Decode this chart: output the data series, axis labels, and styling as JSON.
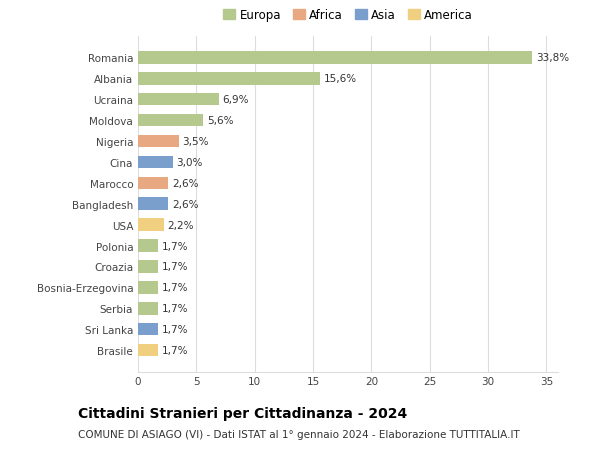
{
  "categories": [
    "Brasile",
    "Sri Lanka",
    "Serbia",
    "Bosnia-Erzegovina",
    "Croazia",
    "Polonia",
    "USA",
    "Bangladesh",
    "Marocco",
    "Cina",
    "Nigeria",
    "Moldova",
    "Ucraina",
    "Albania",
    "Romania"
  ],
  "values": [
    1.7,
    1.7,
    1.7,
    1.7,
    1.7,
    1.7,
    2.2,
    2.6,
    2.6,
    3.0,
    3.5,
    5.6,
    6.9,
    15.6,
    33.8
  ],
  "labels": [
    "1,7%",
    "1,7%",
    "1,7%",
    "1,7%",
    "1,7%",
    "1,7%",
    "2,2%",
    "2,6%",
    "2,6%",
    "3,0%",
    "3,5%",
    "5,6%",
    "6,9%",
    "15,6%",
    "33,8%"
  ],
  "continent": [
    "America",
    "Asia",
    "Europa",
    "Europa",
    "Europa",
    "Europa",
    "America",
    "Asia",
    "Africa",
    "Asia",
    "Africa",
    "Europa",
    "Europa",
    "Europa",
    "Europa"
  ],
  "colors": {
    "Europa": "#b5c98e",
    "Africa": "#e8a882",
    "Asia": "#7b9fcc",
    "America": "#f0d080"
  },
  "legend_order": [
    "Europa",
    "Africa",
    "Asia",
    "America"
  ],
  "title": "Cittadini Stranieri per Cittadinanza - 2024",
  "subtitle": "COMUNE DI ASIAGO (VI) - Dati ISTAT al 1° gennaio 2024 - Elaborazione TUTTITALIA.IT",
  "xlim": [
    0,
    36
  ],
  "xticks": [
    0,
    5,
    10,
    15,
    20,
    25,
    30,
    35
  ],
  "background_color": "#ffffff",
  "grid_color": "#dddddd",
  "bar_height": 0.6,
  "title_fontsize": 10,
  "subtitle_fontsize": 7.5,
  "label_fontsize": 7.5,
  "tick_fontsize": 7.5,
  "legend_fontsize": 8.5
}
